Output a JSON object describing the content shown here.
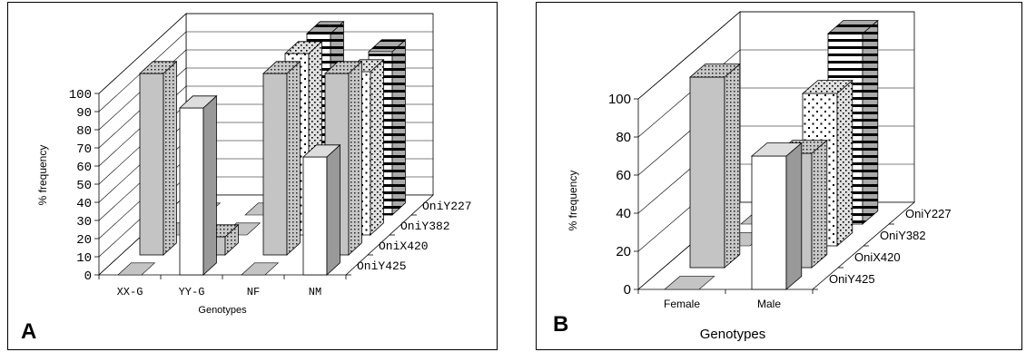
{
  "chart_data": [
    {
      "type": "bar",
      "panel_label": "A",
      "xlabel": "Genotypes",
      "ylabel": "% frequency",
      "ylim": [
        0,
        100
      ],
      "yticks": [
        0,
        10,
        20,
        30,
        40,
        50,
        60,
        70,
        80,
        90,
        100
      ],
      "categories": [
        "XX-G",
        "YY-G",
        "NF",
        "NM"
      ],
      "depth_labels": [
        "OniY425",
        "OniX420",
        "OniY382",
        "OniY227"
      ],
      "series": [
        {
          "name": "OniY425",
          "values": [
            0,
            92,
            0,
            65
          ]
        },
        {
          "name": "OniX420",
          "values": [
            100,
            10,
            100,
            100
          ]
        },
        {
          "name": "OniY382",
          "values": [
            0,
            0,
            100,
            90
          ]
        },
        {
          "name": "OniY227",
          "values": [
            0,
            0,
            100,
            90
          ]
        }
      ],
      "grid": true
    },
    {
      "type": "bar",
      "panel_label": "B",
      "xlabel": "Genotypes",
      "ylabel": "% frequency",
      "ylim": [
        0,
        100
      ],
      "yticks": [
        0,
        20,
        40,
        60,
        80,
        100
      ],
      "categories": [
        "Female",
        "Male"
      ],
      "depth_labels": [
        "OniY425",
        "OniX420",
        "OniY382",
        "OniY227"
      ],
      "series": [
        {
          "name": "OniY425",
          "values": [
            0,
            70
          ]
        },
        {
          "name": "OniX420",
          "values": [
            100,
            60
          ]
        },
        {
          "name": "OniY382",
          "values": [
            0,
            80
          ]
        },
        {
          "name": "OniY227",
          "values": [
            0,
            100
          ]
        }
      ],
      "grid": true
    }
  ]
}
